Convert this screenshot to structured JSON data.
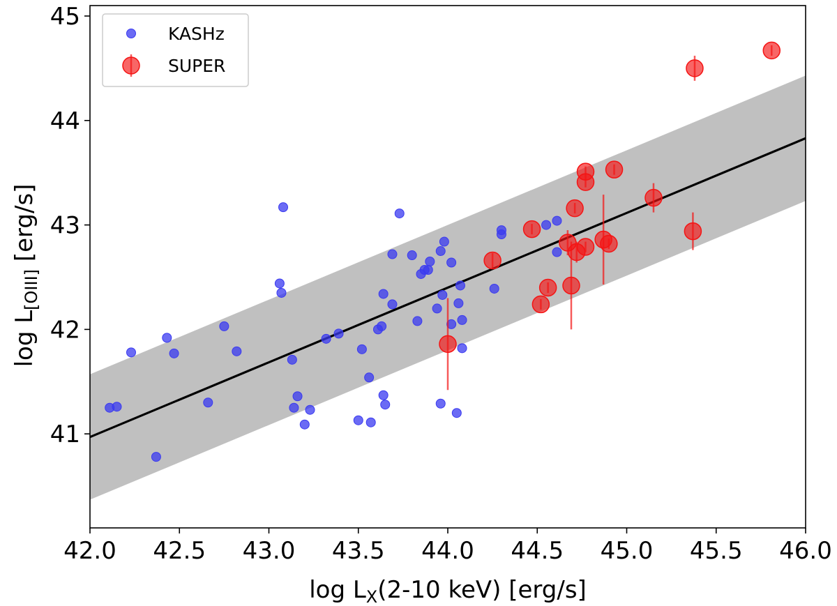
{
  "chart_data": {
    "type": "scatter",
    "title": "",
    "xlabel": {
      "main": "log L",
      "sub": "X",
      "rest": "(2-10 keV) [erg/s]"
    },
    "ylabel": {
      "main": "log L",
      "sub": "[OIII]",
      "rest": " [erg/s]"
    },
    "xlim": [
      42.0,
      46.0
    ],
    "ylim": [
      40.1,
      45.1
    ],
    "xticks": [
      "42.0",
      "42.5",
      "43.0",
      "43.5",
      "44.0",
      "44.5",
      "45.0",
      "45.5",
      "46.0"
    ],
    "yticks": [
      "41",
      "42",
      "43",
      "44",
      "45"
    ],
    "grid": false,
    "legend_position": "top-left",
    "fit_line": {
      "x": [
        42.0,
        46.0
      ],
      "y": [
        40.97,
        43.83
      ],
      "band_halfwidth": 0.6,
      "band_color": "#c0c0c0",
      "line_color": "#000000"
    },
    "series": [
      {
        "name": "KASHz",
        "color": "#3a3af0",
        "marker": "small-circle",
        "points": [
          [
            42.11,
            41.25
          ],
          [
            42.15,
            41.26
          ],
          [
            42.23,
            41.78
          ],
          [
            42.37,
            40.78
          ],
          [
            42.43,
            41.92
          ],
          [
            42.47,
            41.77
          ],
          [
            42.66,
            41.3
          ],
          [
            42.75,
            42.03
          ],
          [
            42.82,
            41.79
          ],
          [
            43.06,
            42.44
          ],
          [
            43.07,
            42.35
          ],
          [
            43.08,
            43.17
          ],
          [
            43.13,
            41.71
          ],
          [
            43.14,
            41.25
          ],
          [
            43.16,
            41.36
          ],
          [
            43.2,
            41.09
          ],
          [
            43.23,
            41.23
          ],
          [
            43.32,
            41.91
          ],
          [
            43.39,
            41.96
          ],
          [
            43.5,
            41.13
          ],
          [
            43.52,
            41.81
          ],
          [
            43.56,
            41.54
          ],
          [
            43.57,
            41.11
          ],
          [
            43.61,
            42.0
          ],
          [
            43.63,
            42.03
          ],
          [
            43.64,
            41.37
          ],
          [
            43.64,
            42.34
          ],
          [
            43.65,
            41.28
          ],
          [
            43.69,
            42.72
          ],
          [
            43.69,
            42.24
          ],
          [
            43.73,
            43.11
          ],
          [
            43.8,
            42.71
          ],
          [
            43.83,
            42.08
          ],
          [
            43.85,
            42.53
          ],
          [
            43.87,
            42.57
          ],
          [
            43.9,
            42.65
          ],
          [
            43.89,
            42.57
          ],
          [
            43.94,
            42.2
          ],
          [
            43.96,
            42.75
          ],
          [
            43.96,
            41.29
          ],
          [
            43.97,
            42.33
          ],
          [
            43.98,
            42.84
          ],
          [
            44.02,
            42.64
          ],
          [
            44.02,
            42.05
          ],
          [
            44.05,
            41.2
          ],
          [
            44.06,
            42.25
          ],
          [
            44.07,
            42.42
          ],
          [
            44.08,
            41.82
          ],
          [
            44.08,
            42.09
          ],
          [
            44.26,
            42.39
          ],
          [
            44.3,
            42.95
          ],
          [
            44.3,
            42.91
          ],
          [
            44.55,
            43.0
          ],
          [
            44.61,
            43.04
          ],
          [
            44.61,
            42.74
          ]
        ]
      },
      {
        "name": "SUPER",
        "color": "#f41414",
        "marker": "large-circle-errorbar",
        "points": [
          [
            44.0,
            41.86,
            0.44
          ],
          [
            44.25,
            42.66,
            0.07
          ],
          [
            44.47,
            42.96,
            0.05
          ],
          [
            44.52,
            42.24,
            0.05
          ],
          [
            44.56,
            42.4,
            0.05
          ],
          [
            44.67,
            42.83,
            0.12
          ],
          [
            44.69,
            42.42,
            0.42
          ],
          [
            44.71,
            43.16,
            0.05
          ],
          [
            44.72,
            42.74,
            0.1
          ],
          [
            44.77,
            43.51,
            0.05
          ],
          [
            44.77,
            42.79,
            0.05
          ],
          [
            44.77,
            43.41,
            0.05
          ],
          [
            44.87,
            42.86,
            0.43
          ],
          [
            44.9,
            42.82,
            0.05
          ],
          [
            44.93,
            43.53,
            0.05
          ],
          [
            45.15,
            43.26,
            0.14
          ],
          [
            45.37,
            42.94,
            0.18
          ],
          [
            45.38,
            44.5,
            0.12
          ],
          [
            45.81,
            44.67,
            0.05
          ]
        ]
      }
    ]
  }
}
